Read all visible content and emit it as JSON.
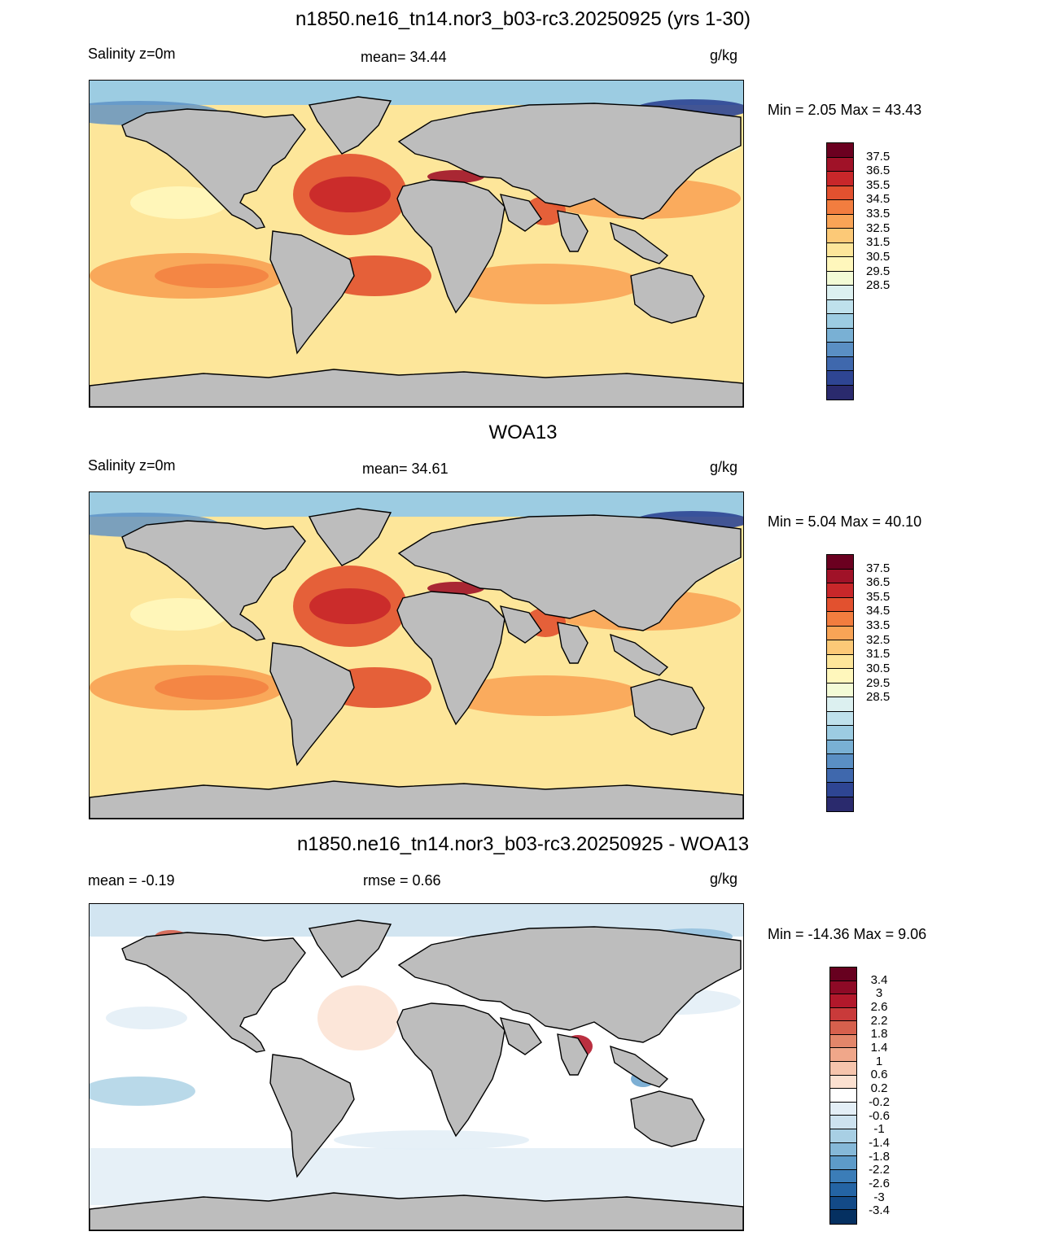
{
  "panels": [
    {
      "id": "model",
      "title": "n1850.ne16_tn14.nor3_b03-rc3.20250925 (yrs 1-30)",
      "left_label": "Salinity z=0m",
      "center_label": "mean=  34.44",
      "units": "g/kg",
      "minmax": "Min =   2.05 Max =  43.43",
      "colorbar": {
        "labels": [
          "37.5",
          "36.5",
          "35.5",
          "34.5",
          "33.5",
          "32.5",
          "31.5",
          "30.5",
          "29.5",
          "28.5"
        ],
        "colors": [
          "#6b0020",
          "#a01228",
          "#c8272a",
          "#e2512f",
          "#f27d3f",
          "#f9a456",
          "#fcc977",
          "#fde69a",
          "#fff7bc",
          "#f3fbd6",
          "#dcf0f0",
          "#bfe1ec",
          "#9cccE2",
          "#79b0d4",
          "#5a8fc4",
          "#3f68ad",
          "#2e4593",
          "#2a2a6d"
        ]
      }
    },
    {
      "id": "obs",
      "title": "WOA13",
      "left_label": "Salinity z=0m",
      "center_label": "mean=  34.61",
      "units": "g/kg",
      "minmax": "Min =   5.04 Max =  40.10",
      "colorbar": {
        "labels": [
          "37.5",
          "36.5",
          "35.5",
          "34.5",
          "33.5",
          "32.5",
          "31.5",
          "30.5",
          "29.5",
          "28.5"
        ],
        "colors": [
          "#6b0020",
          "#a01228",
          "#c8272a",
          "#e2512f",
          "#f27d3f",
          "#f9a456",
          "#fcc977",
          "#fde69a",
          "#fff7bc",
          "#f3fbd6",
          "#dcf0f0",
          "#bfe1ec",
          "#9cccE2",
          "#79b0d4",
          "#5a8fc4",
          "#3f68ad",
          "#2e4593",
          "#2a2a6d"
        ]
      }
    },
    {
      "id": "diff",
      "title": "n1850.ne16_tn14.nor3_b03-rc3.20250925 - WOA13",
      "left_label": "mean =  -0.19",
      "center_label": "rmse =   0.66",
      "units": "g/kg",
      "minmax": "Min = -14.36 Max =   9.06",
      "colorbar": {
        "labels": [
          "3.4",
          "3",
          "2.6",
          "2.2",
          "1.8",
          "1.4",
          "1",
          "0.6",
          "0.2",
          "-0.2",
          "-0.6",
          "-1",
          "-1.4",
          "-1.8",
          "-2.2",
          "-2.6",
          "-3",
          "-3.4"
        ],
        "colors": [
          "#67001f",
          "#8e0a26",
          "#b2182b",
          "#c93a3a",
          "#d6604d",
          "#e3866a",
          "#f0a78a",
          "#f6c4ac",
          "#fbe0d0",
          "#ffffff",
          "#e3eef6",
          "#cde2ef",
          "#a8cfe4",
          "#85b8d8",
          "#5d9bc9",
          "#3b7db8",
          "#2464a4",
          "#134a87",
          "#053061"
        ]
      }
    }
  ]
}
